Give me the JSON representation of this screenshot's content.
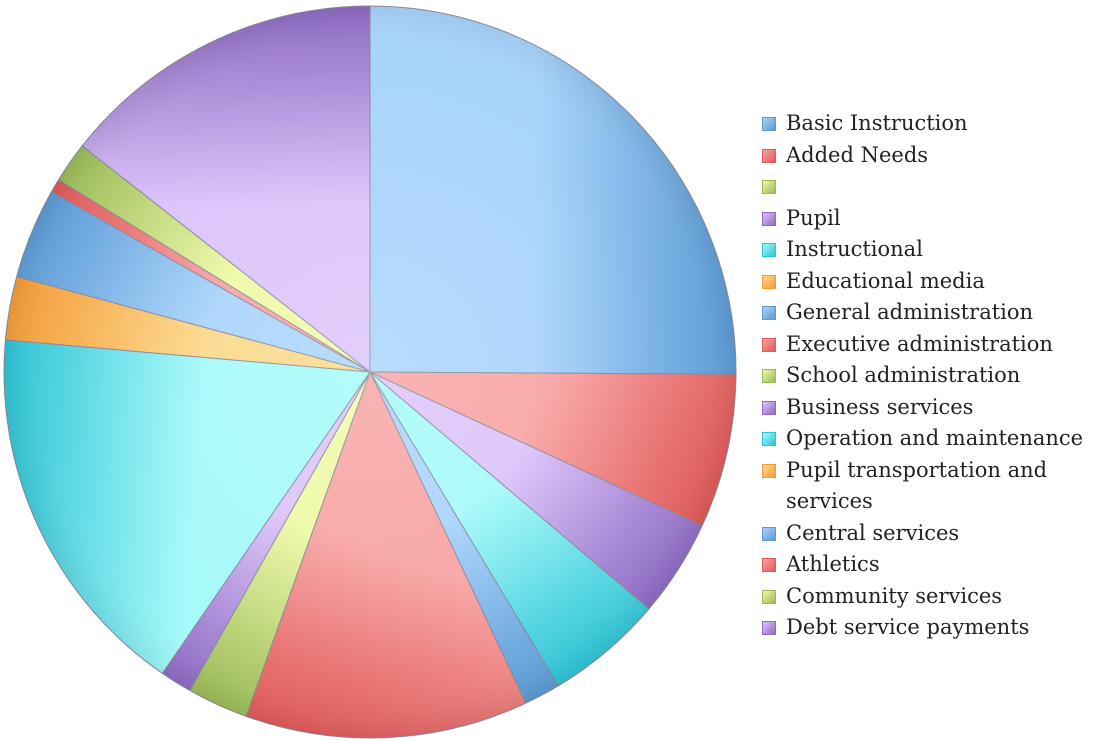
{
  "chart_data": {
    "type": "pie",
    "title": "",
    "start_angle_deg": 0,
    "direction": "clockwise",
    "slices": [
      {
        "label": "Basic Instruction",
        "value": 25.1,
        "color": "#5b9bd5",
        "fill": "#a9d4fc"
      },
      {
        "label": "Added Needs",
        "value": 6.8,
        "color": "#e05a58",
        "fill": "#f8a4a4"
      },
      {
        "label": "",
        "value": 0,
        "color": "#9bbb59",
        "fill": "#eefaa6"
      },
      {
        "label": "Pupil",
        "value": 4.3,
        "color": "#8e6bc4",
        "fill": "#dcc4fa"
      },
      {
        "label": "Instructional",
        "value": 5.2,
        "color": "#2ec4d6",
        "fill": "#a5fafa"
      },
      {
        "label": "Educational media",
        "value": 0,
        "color": "#f59c3a",
        "fill": "#fcd98a"
      },
      {
        "label": "General administration",
        "value": 1.6,
        "color": "#5b9bd5",
        "fill": "#a9d4fc"
      },
      {
        "label": "Executive administration",
        "value": 12.5,
        "color": "#e05a58",
        "fill": "#f8a4a4"
      },
      {
        "label": "School administration",
        "value": 2.7,
        "color": "#9bbb59",
        "fill": "#eefaa6"
      },
      {
        "label": "Business services",
        "value": 1.4,
        "color": "#8e6bc4",
        "fill": "#dcc4fa"
      },
      {
        "label": "Operation and maintenance",
        "value": 16.8,
        "color": "#2ec4d6",
        "fill": "#a5fafa"
      },
      {
        "label": "Pupil transportation and services",
        "value": 2.8,
        "color": "#f59c3a",
        "fill": "#fcd98a"
      },
      {
        "label": "Central services",
        "value": 4.0,
        "color": "#5b9bd5",
        "fill": "#a9d4fc"
      },
      {
        "label": "Athletics",
        "value": 0.6,
        "color": "#e05a58",
        "fill": "#f8a4a4"
      },
      {
        "label": "Community services",
        "value": 1.8,
        "color": "#9bbb59",
        "fill": "#eefaa6"
      },
      {
        "label": "Debt service payments",
        "value": 14.4,
        "color": "#8e6bc4",
        "fill": "#dcc4fa"
      }
    ],
    "legend_position": "right"
  }
}
